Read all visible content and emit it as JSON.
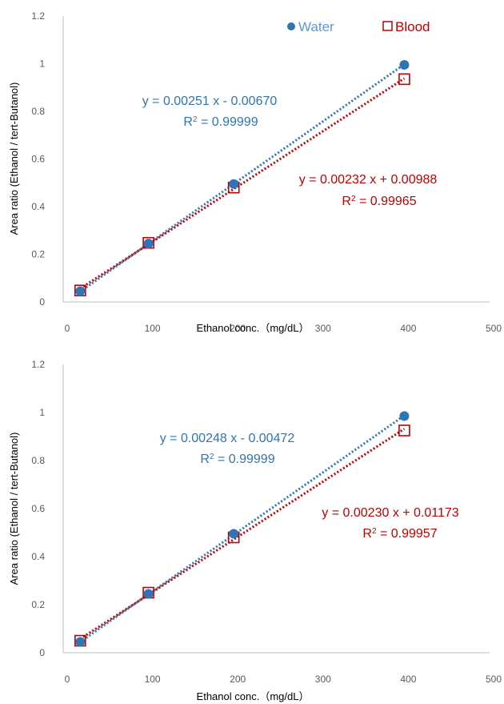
{
  "colors": {
    "water": "#2e75b6",
    "blood": "#c00000",
    "axis": "#bfbfbf",
    "tick_text": "#595959",
    "label_text": "#000000"
  },
  "legend": {
    "water": {
      "label": "Water",
      "icon": "filled-circle-marker"
    },
    "blood": {
      "label": "Blood",
      "icon": "hollow-square-marker"
    }
  },
  "chart_data": [
    {
      "type": "scatter",
      "xlabel": "Ethanol conc.（mg/dL）",
      "ylabel": "Area ratio (Ethanol / tert-Butanol)",
      "xlim": [
        0,
        500
      ],
      "ylim": [
        0,
        1.2
      ],
      "x_ticks": [
        "0",
        "100",
        "200",
        "300",
        "400",
        "500"
      ],
      "y_ticks": [
        "0",
        "0.2",
        "0.4",
        "0.6",
        "0.8",
        "1",
        "1.2"
      ],
      "grid": false,
      "legend_position": "top-right",
      "series": [
        {
          "name": "Water",
          "x": [
            20,
            100,
            200,
            400
          ],
          "y": [
            0.045,
            0.245,
            0.495,
            0.995
          ],
          "trendline": {
            "slope": 0.00251,
            "intercept": -0.0067
          },
          "equation": "y = 0.00251 x - 0.00670",
          "r2_label": "R",
          "r2_value": " = 0.99999"
        },
        {
          "name": "Blood",
          "x": [
            20,
            100,
            200,
            400
          ],
          "y": [
            0.048,
            0.248,
            0.48,
            0.935
          ],
          "trendline": {
            "slope": 0.00232,
            "intercept": 0.00988
          },
          "equation": "y = 0.00232 x + 0.00988",
          "r2_label": "R",
          "r2_value": " = 0.99965"
        }
      ]
    },
    {
      "type": "scatter",
      "xlabel": "Ethanol conc.（mg/dL）",
      "ylabel": "Area ratio (Ethanol / tert-Butanol)",
      "xlim": [
        0,
        500
      ],
      "ylim": [
        0,
        1.2
      ],
      "x_ticks": [
        "0",
        "100",
        "200",
        "300",
        "400",
        "500"
      ],
      "y_ticks": [
        "0",
        "0.2",
        "0.4",
        "0.6",
        "0.8",
        "1",
        "1.2"
      ],
      "grid": false,
      "series": [
        {
          "name": "Water",
          "x": [
            20,
            100,
            200,
            400
          ],
          "y": [
            0.045,
            0.245,
            0.495,
            0.985
          ],
          "trendline": {
            "slope": 0.00248,
            "intercept": -0.00472
          },
          "equation": "y = 0.00248 x - 0.00472",
          "r2_label": "R",
          "r2_value": " = 0.99999"
        },
        {
          "name": "Blood",
          "x": [
            20,
            100,
            200,
            400
          ],
          "y": [
            0.05,
            0.25,
            0.48,
            0.925
          ],
          "trendline": {
            "slope": 0.0023,
            "intercept": 0.01173
          },
          "equation": "y = 0.00230 x + 0.01173",
          "r2_label": "R",
          "r2_value": " = 0.99957"
        }
      ]
    }
  ]
}
